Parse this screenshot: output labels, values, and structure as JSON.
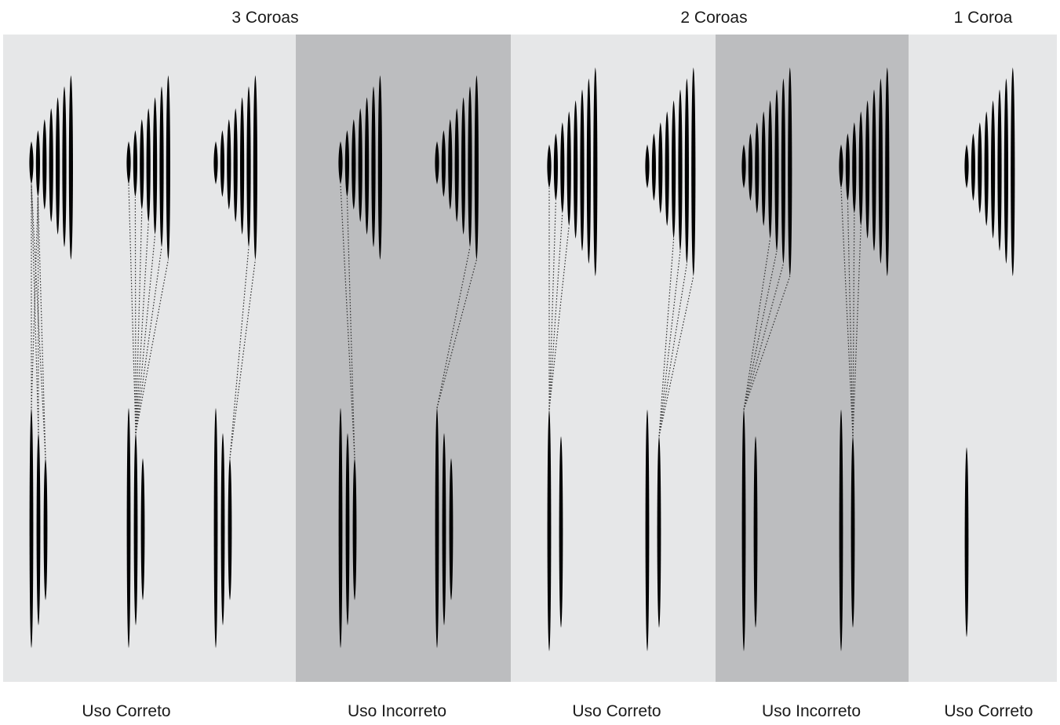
{
  "header_labels": [
    {
      "text": "3 Coroas"
    },
    {
      "text": "2 Coroas"
    },
    {
      "text": "1 Coroa"
    }
  ],
  "panels": [
    {
      "label": "Uso Correto",
      "shaded": false,
      "bikes": [
        {
          "rear_count": 7,
          "front_count": 3,
          "chain": [
            [
              0,
              0
            ],
            [
              0,
              1
            ],
            [
              1,
              0
            ],
            [
              1,
              1
            ],
            [
              2,
              0
            ],
            [
              2,
              1
            ]
          ]
        },
        {
          "rear_count": 7,
          "front_count": 3,
          "chain": [
            [
              1,
              0
            ],
            [
              1,
              1
            ],
            [
              1,
              2
            ],
            [
              1,
              3
            ],
            [
              1,
              4
            ],
            [
              1,
              5
            ],
            [
              1,
              6
            ]
          ]
        },
        {
          "rear_count": 7,
          "front_count": 3,
          "chain": [
            [
              2,
              5
            ],
            [
              2,
              6
            ]
          ]
        }
      ]
    },
    {
      "label": "Uso Incorreto",
      "shaded": true,
      "bikes": [
        {
          "rear_count": 7,
          "front_count": 3,
          "chain": [
            [
              2,
              0
            ],
            [
              2,
              1
            ]
          ]
        },
        {
          "rear_count": 7,
          "front_count": 3,
          "chain": [
            [
              0,
              5
            ],
            [
              0,
              6
            ]
          ]
        }
      ]
    },
    {
      "label": "Uso Correto",
      "shaded": false,
      "bikes": [
        {
          "rear_count": 8,
          "front_count": 2,
          "chain": [
            [
              0,
              0
            ],
            [
              0,
              1
            ],
            [
              0,
              2
            ],
            [
              0,
              3
            ]
          ]
        },
        {
          "rear_count": 8,
          "front_count": 2,
          "chain": [
            [
              1,
              4
            ],
            [
              1,
              5
            ],
            [
              1,
              6
            ],
            [
              1,
              7
            ]
          ]
        }
      ]
    },
    {
      "label": "Uso Incorreto",
      "shaded": true,
      "bikes": [
        {
          "rear_count": 8,
          "front_count": 2,
          "chain": [
            [
              0,
              4
            ],
            [
              0,
              5
            ],
            [
              0,
              6
            ],
            [
              0,
              7
            ]
          ]
        },
        {
          "rear_count": 8,
          "front_count": 2,
          "chain": [
            [
              1,
              0
            ],
            [
              1,
              1
            ],
            [
              1,
              2
            ],
            [
              1,
              3
            ]
          ]
        }
      ]
    },
    {
      "label": "Uso Correto",
      "shaded": false,
      "bikes": [
        {
          "rear_count": 8,
          "front_count": 1,
          "chain": []
        }
      ]
    }
  ],
  "colors": {
    "panel_light": "#e6e7e8",
    "panel_dark": "#bcbdbf",
    "sprocket": "#000000",
    "chain_line": "#333333",
    "text": "#1a1a1a"
  }
}
